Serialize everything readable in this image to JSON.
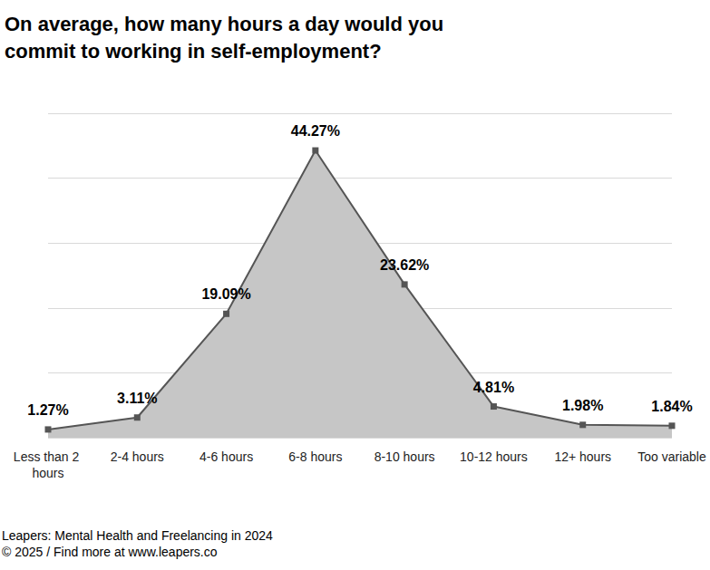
{
  "chart_data": {
    "type": "area",
    "title": "On average, how many hours a day would you commit to working in self-employment?",
    "categories": [
      "Less than 2 hours",
      "2-4 hours",
      "4-6 hours",
      "6-8 hours",
      "8-10 hours",
      "10-12 hours",
      "12+ hours",
      "Too variable"
    ],
    "values": [
      1.27,
      3.11,
      19.09,
      44.27,
      23.62,
      4.81,
      1.98,
      1.84
    ],
    "value_labels": [
      "1.27%",
      "3.11%",
      "19.09%",
      "44.27%",
      "23.62%",
      "4.81%",
      "1.98%",
      "1.84%"
    ],
    "color": "#555555",
    "marker": "square",
    "ylim": [
      0,
      50
    ],
    "yticks": [
      0,
      10,
      20,
      30,
      40,
      50
    ],
    "grid": true,
    "data_labels": true,
    "tick_labels": "x",
    "annotations": [
      "Leapers: Mental Health and Freelancing in 2024",
      "© 2025 / Find more at www.leapers.co"
    ]
  }
}
